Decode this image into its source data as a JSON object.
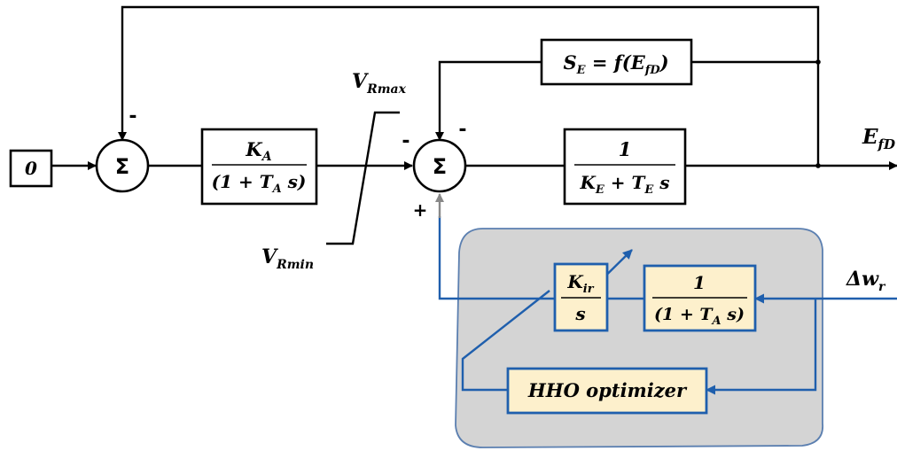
{
  "input_block": {
    "label": "0"
  },
  "sum1": {
    "symbol": "Σ",
    "top_sign": "-"
  },
  "exciter_gain": {
    "numerator": "K",
    "numerator_sub": "A",
    "denominator": "(1 + T",
    "denominator_sub": "A",
    "denominator_tail": " s)"
  },
  "limiter": {
    "max_label": "V",
    "max_sub": "Rmax",
    "min_label": "V",
    "min_sub": "Rmin"
  },
  "sum2": {
    "symbol": "Σ",
    "left_sign": "-",
    "top_sign": "-",
    "bottom_sign": "+"
  },
  "saturation": {
    "lhs": "S",
    "lhs_sub": "E",
    "rhs": " = f(E",
    "rhs_sub": "fD",
    "rhs_tail": ")"
  },
  "field_block": {
    "numerator": "1",
    "denominator": "K",
    "denominator_sub": "E",
    "denominator_mid": " + T",
    "denominator_sub2": "E",
    "denominator_tail": " s"
  },
  "output": {
    "label": "E",
    "sub": "fD"
  },
  "stabilizer_input": {
    "label": "Δw",
    "sub": "r"
  },
  "integrator": {
    "numerator": "K",
    "numerator_sub": "ir",
    "denominator": "s"
  },
  "filter": {
    "numerator": "1",
    "denominator": "(1 + T",
    "denominator_sub": "A",
    "denominator_tail": " s)"
  },
  "optimizer": {
    "label": "HHO optimizer"
  },
  "colors": {
    "control_blue": "#1f5fad",
    "panel_gray": "#d4d4d4",
    "block_fill": "#fdf0cc"
  }
}
